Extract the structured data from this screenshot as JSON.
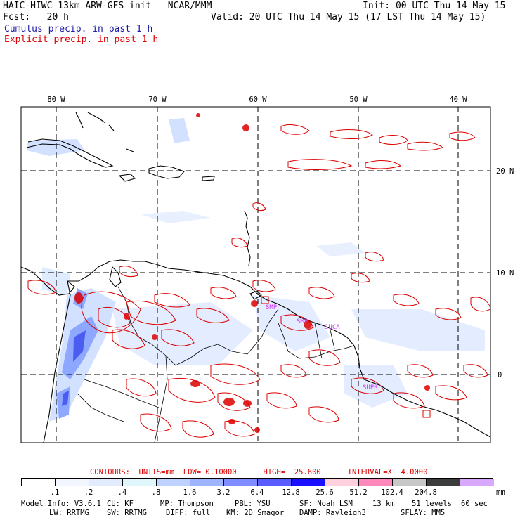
{
  "header": {
    "title": "HAIC-HIWC 13km ARW-GFS init   NCAR/MMM",
    "init": "Init: 00 UTC Thu 14 May 15",
    "fcst_label": "Fcst:   20 h",
    "valid": "Valid: 20 UTC Thu 14 May 15 (17 LST Thu 14 May 15)",
    "field1": "Cumulus precip. in past 1 h",
    "field2": "Explicit precip. in past 1 h"
  },
  "map": {
    "lon_labels": [
      "80 W",
      "70 W",
      "60 W",
      "50 W",
      "40 W"
    ],
    "lat_labels": [
      "20 N",
      "10 N",
      "0"
    ],
    "station_labels": [
      "SMP",
      "SMP",
      "SUCA",
      "SUPR"
    ],
    "colors": {
      "coast": "#000000",
      "grid": "#000000",
      "explicit": "#dd0000",
      "cumulus_light": "#cfe0ff",
      "cumulus_mid": "#8fa8ff",
      "cumulus_dark": "#4a5df0",
      "station": "#cc33ff"
    }
  },
  "contours_line": "CONTOURS:  UNITS=mm  LOW= 0.10000      HIGH=  25.600      INTERVAL=X  4.0000",
  "colorbar": {
    "unit": "mm",
    "labels": [
      ".1",
      ".2",
      ".4",
      ".8",
      "1.6",
      "3.2",
      "6.4",
      "12.8",
      "25.6",
      "51.2",
      "102.4",
      "204.8"
    ],
    "colors": [
      "#ffffff",
      "#f2f6ff",
      "#e3ebff",
      "#dff7fb",
      "#bfd2ff",
      "#9fb4ff",
      "#7f8cff",
      "#5a5cff",
      "#1a10ff",
      "#ffd0dd",
      "#ff88bb",
      "#c8c8c8",
      "#3c3c3c",
      "#d8a8ff"
    ]
  },
  "footer": {
    "line1": [
      "Model Info: V3.6.1",
      "CU: KF",
      "MP: Thompson",
      "PBL: YSU",
      "SF: Noah LSM",
      "13 km",
      "51 levels",
      "60 sec"
    ],
    "line2": [
      "LW: RRTMG",
      "SW: RRTMG",
      "DIFF: full",
      "KM: 2D Smagor",
      "DAMP: Rayleigh3",
      "SFLAY: MM5"
    ]
  }
}
